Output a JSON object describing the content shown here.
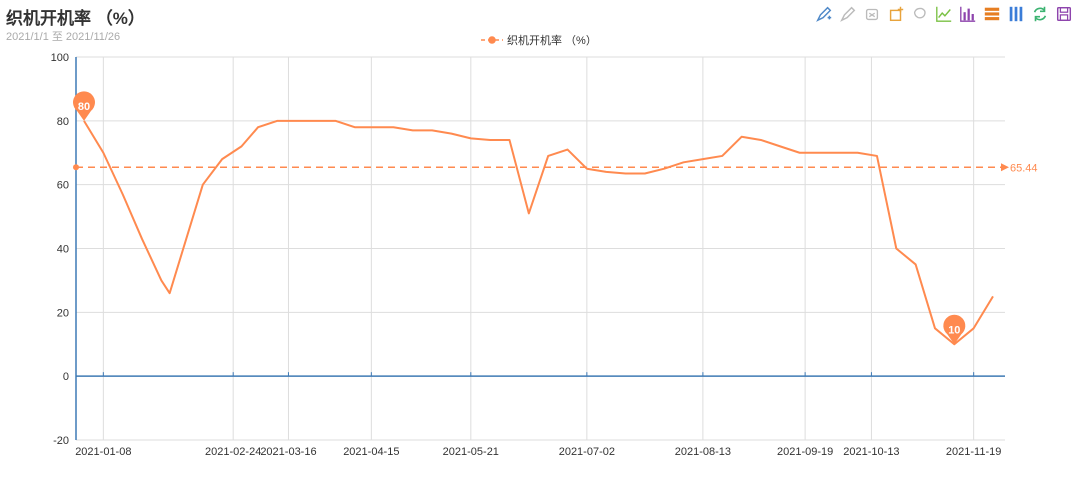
{
  "header": {
    "title": "织机开机率  （%）",
    "subtitle": "2021/1/1 至 2021/11/26"
  },
  "toolbox": [
    {
      "name": "brush-icon",
      "color": "#4e88c8"
    },
    {
      "name": "brush-clear-icon",
      "color": "#bbbbbb"
    },
    {
      "name": "clear-icon",
      "color": "#bbbbbb"
    },
    {
      "name": "rect-select-icon",
      "color": "#e8a33c"
    },
    {
      "name": "lasso-icon",
      "color": "#bbbbbb"
    },
    {
      "name": "line-chart-icon",
      "color": "#7ac143"
    },
    {
      "name": "bar-chart-icon",
      "color": "#8e44ad"
    },
    {
      "name": "stack-icon",
      "color": "#e67e22"
    },
    {
      "name": "tiled-icon",
      "color": "#3b7dd8"
    },
    {
      "name": "restore-icon",
      "color": "#3cb371"
    },
    {
      "name": "save-image-icon",
      "color": "#8e44ad"
    }
  ],
  "chart_data": {
    "type": "line",
    "title": "织机开机率  （%）",
    "subtitle": "2021/1/1 至 2021/11/26",
    "legend": {
      "entries": [
        "织机开机率  （%）"
      ],
      "position": "top-center"
    },
    "series": [
      {
        "name": "织机开机率  （%）",
        "color": "#ff8a4f",
        "points": [
          [
            "2021-01-01",
            80
          ],
          [
            "2021-01-08",
            70
          ],
          [
            "2021-01-15",
            57
          ],
          [
            "2021-01-22",
            43
          ],
          [
            "2021-01-29",
            30
          ],
          [
            "2021-02-01",
            26
          ],
          [
            "2021-02-13",
            60
          ],
          [
            "2021-02-20",
            68
          ],
          [
            "2021-02-27",
            72
          ],
          [
            "2021-03-05",
            78
          ],
          [
            "2021-03-12",
            80
          ],
          [
            "2021-03-19",
            80
          ],
          [
            "2021-03-26",
            80
          ],
          [
            "2021-04-02",
            80
          ],
          [
            "2021-04-09",
            78
          ],
          [
            "2021-04-16",
            78
          ],
          [
            "2021-04-23",
            78
          ],
          [
            "2021-04-30",
            77
          ],
          [
            "2021-05-07",
            77
          ],
          [
            "2021-05-14",
            76
          ],
          [
            "2021-05-21",
            74.5
          ],
          [
            "2021-05-28",
            74
          ],
          [
            "2021-06-04",
            74
          ],
          [
            "2021-06-11",
            51
          ],
          [
            "2021-06-18",
            69
          ],
          [
            "2021-06-25",
            71
          ],
          [
            "2021-07-02",
            65
          ],
          [
            "2021-07-09",
            64
          ],
          [
            "2021-07-16",
            63.5
          ],
          [
            "2021-07-23",
            63.5
          ],
          [
            "2021-07-30",
            65
          ],
          [
            "2021-08-06",
            67
          ],
          [
            "2021-08-13",
            68
          ],
          [
            "2021-08-20",
            69
          ],
          [
            "2021-08-27",
            75
          ],
          [
            "2021-09-03",
            74
          ],
          [
            "2021-09-10",
            72
          ],
          [
            "2021-09-17",
            70
          ],
          [
            "2021-09-24",
            70
          ],
          [
            "2021-10-01",
            70
          ],
          [
            "2021-10-08",
            70
          ],
          [
            "2021-10-15",
            69
          ],
          [
            "2021-10-22",
            40
          ],
          [
            "2021-10-29",
            35
          ],
          [
            "2021-11-05",
            15
          ],
          [
            "2021-11-12",
            10
          ],
          [
            "2021-11-19",
            15
          ],
          [
            "2021-11-26",
            25
          ]
        ]
      }
    ],
    "x_ticks": [
      "2021-01-08",
      "2021-02-24",
      "2021-03-16",
      "2021-04-15",
      "2021-05-21",
      "2021-07-02",
      "2021-08-13",
      "2021-09-19",
      "2021-10-13",
      "2021-11-19"
    ],
    "y_ticks": [
      -20,
      0,
      20,
      40,
      60,
      80,
      100
    ],
    "ylim": [
      -20,
      100
    ],
    "mark_points": [
      {
        "label": "80",
        "value": 80,
        "date": "2021-01-01"
      },
      {
        "label": "10",
        "value": 10,
        "date": "2021-11-12"
      }
    ],
    "mark_line": {
      "label": "65.44",
      "value": 65.44,
      "style": "dashed"
    },
    "grid": true
  }
}
